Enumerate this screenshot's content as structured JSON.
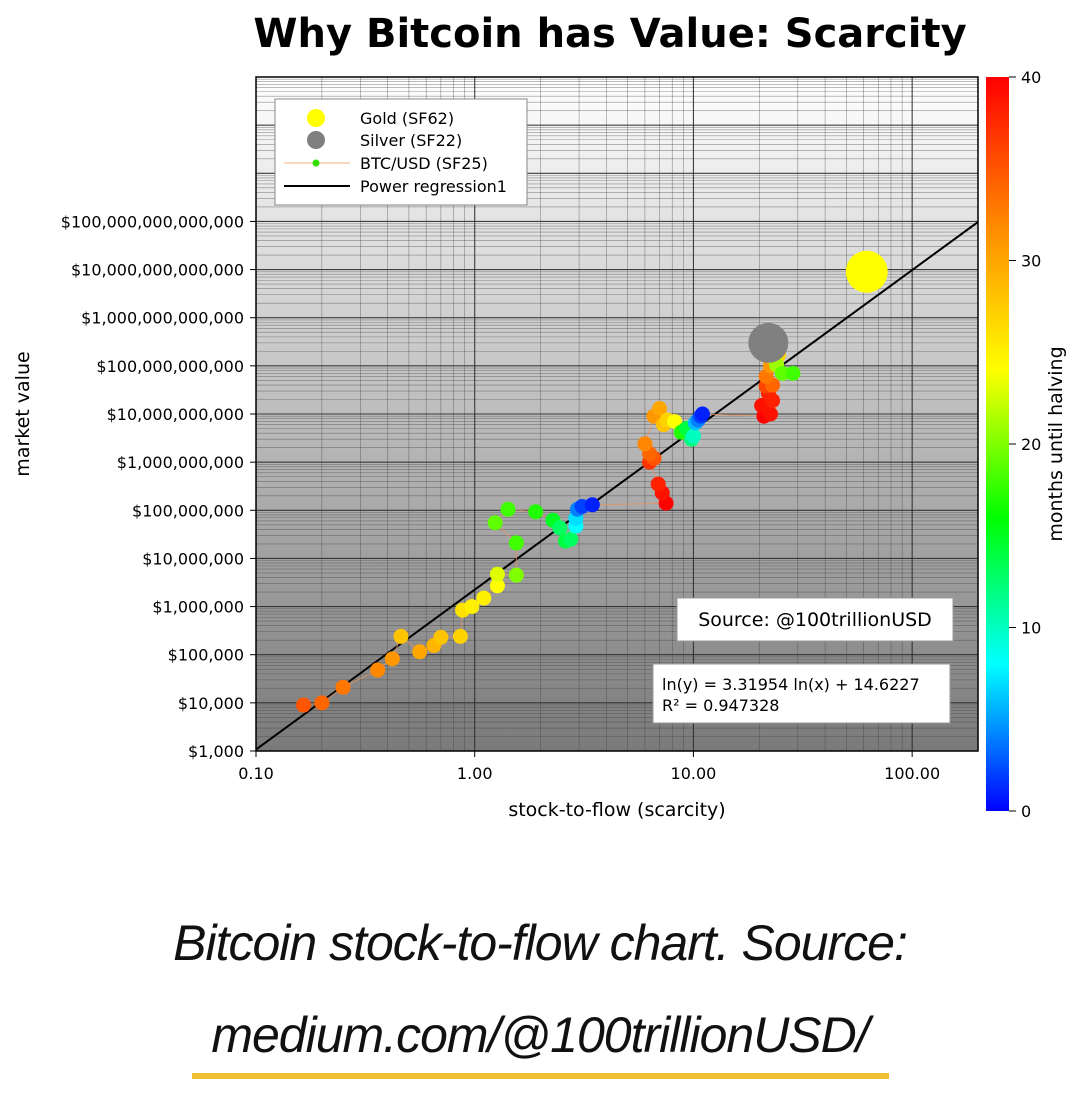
{
  "chart_data": {
    "type": "scatter",
    "title": "Why Bitcoin has Value: Scarcity",
    "xlabel": "stock-to-flow (scarcity)",
    "ylabel": "market value",
    "xscale": "log",
    "yscale": "log",
    "xlim": [
      0.1,
      200
    ],
    "ylim": [
      1000,
      100000000000000000
    ],
    "x_ticks": [
      {
        "value": 0.1,
        "label": "0.10"
      },
      {
        "value": 1,
        "label": "1.00"
      },
      {
        "value": 10,
        "label": "10.00"
      },
      {
        "value": 100,
        "label": "100.00"
      }
    ],
    "y_ticks": [
      {
        "value": 1000.0,
        "label": "$1,000"
      },
      {
        "value": 10000.0,
        "label": "$10,000"
      },
      {
        "value": 100000.0,
        "label": "$100,000"
      },
      {
        "value": 1000000.0,
        "label": "$1,000,000"
      },
      {
        "value": 10000000.0,
        "label": "$10,000,000"
      },
      {
        "value": 100000000.0,
        "label": "$100,000,000"
      },
      {
        "value": 1000000000.0,
        "label": "$1,000,000,000"
      },
      {
        "value": 10000000000.0,
        "label": "$10,000,000,000"
      },
      {
        "value": 100000000000.0,
        "label": "$100,000,000,000"
      },
      {
        "value": 1000000000000.0,
        "label": "$1,000,000,000,000"
      },
      {
        "value": 10000000000000.0,
        "label": "$10,000,000,000,000"
      },
      {
        "value": 100000000000000.0,
        "label": "$100,000,000,000,000"
      }
    ],
    "legend": {
      "position": "top-left",
      "entries": [
        {
          "label": "Gold (SF62)",
          "marker": "circle",
          "color": "#ffff00"
        },
        {
          "label": "Silver (SF22)",
          "marker": "circle",
          "color": "#808080"
        },
        {
          "label": "BTC/USD (SF25)",
          "marker": "line-dot",
          "color": "#33dd00"
        },
        {
          "label": "Power regression1",
          "marker": "line",
          "color": "#000000"
        }
      ]
    },
    "gold": {
      "x": 62,
      "y": 9000000000000.0,
      "color": "#ffff00"
    },
    "silver": {
      "x": 22,
      "y": 300000000000.0,
      "color": "#808080"
    },
    "regression": {
      "slope": 3.31954,
      "intercept": 14.6227,
      "x_range": [
        0.1,
        200
      ],
      "color": "#000000"
    },
    "colorbar": {
      "label": "months until halving",
      "min": 0,
      "max": 40,
      "ticks": [
        0,
        10,
        20,
        30,
        40
      ],
      "colors": [
        "#0000ff",
        "#00ffff",
        "#00ff00",
        "#ffff00",
        "#ff8800",
        "#ff0000"
      ]
    },
    "btc_series": [
      {
        "x": 0.165,
        "y": 9000,
        "m": 35
      },
      {
        "x": 0.2,
        "y": 10000,
        "m": 34
      },
      {
        "x": 0.25,
        "y": 21000,
        "m": 33
      },
      {
        "x": 0.36,
        "y": 48000,
        "m": 32
      },
      {
        "x": 0.42,
        "y": 82000,
        "m": 31
      },
      {
        "x": 0.46,
        "y": 240000,
        "m": 28
      },
      {
        "x": 0.56,
        "y": 115000,
        "m": 30
      },
      {
        "x": 0.65,
        "y": 155000,
        "m": 29
      },
      {
        "x": 0.7,
        "y": 230000,
        "m": 28
      },
      {
        "x": 0.86,
        "y": 240000,
        "m": 27
      },
      {
        "x": 0.88,
        "y": 840000,
        "m": 26
      },
      {
        "x": 0.97,
        "y": 1000000,
        "m": 25
      },
      {
        "x": 1.1,
        "y": 1500000,
        "m": 25
      },
      {
        "x": 1.27,
        "y": 2700000,
        "m": 24
      },
      {
        "x": 1.27,
        "y": 4700000,
        "m": 23
      },
      {
        "x": 1.55,
        "y": 4500000,
        "m": 20
      },
      {
        "x": 1.55,
        "y": 21000000,
        "m": 18
      },
      {
        "x": 1.24,
        "y": 55000000,
        "m": 19
      },
      {
        "x": 1.42,
        "y": 105000000,
        "m": 18
      },
      {
        "x": 1.9,
        "y": 93000000,
        "m": 17
      },
      {
        "x": 2.28,
        "y": 62000000,
        "m": 15
      },
      {
        "x": 2.45,
        "y": 43000000,
        "m": 13
      },
      {
        "x": 2.6,
        "y": 23000000,
        "m": 14
      },
      {
        "x": 2.75,
        "y": 25000000,
        "m": 13
      },
      {
        "x": 2.9,
        "y": 47000000,
        "m": 8
      },
      {
        "x": 2.9,
        "y": 68000000,
        "m": 7
      },
      {
        "x": 2.95,
        "y": 105000000,
        "m": 4
      },
      {
        "x": 3.1,
        "y": 120000000,
        "m": 2
      },
      {
        "x": 3.45,
        "y": 130000000,
        "m": 1
      },
      {
        "x": 7.5,
        "y": 140000000,
        "m": 40
      },
      {
        "x": 7.2,
        "y": 230000000,
        "m": 39
      },
      {
        "x": 6.9,
        "y": 350000000,
        "m": 38
      },
      {
        "x": 6.3,
        "y": 1000000000,
        "m": 37
      },
      {
        "x": 6.6,
        "y": 1200000000,
        "m": 35
      },
      {
        "x": 6.3,
        "y": 1500000000,
        "m": 34
      },
      {
        "x": 6.0,
        "y": 2400000000,
        "m": 32
      },
      {
        "x": 6.6,
        "y": 9000000000,
        "m": 31
      },
      {
        "x": 7.0,
        "y": 13000000000,
        "m": 30
      },
      {
        "x": 7.3,
        "y": 6000000000,
        "m": 28
      },
      {
        "x": 7.6,
        "y": 7500000000,
        "m": 27
      },
      {
        "x": 8.2,
        "y": 7000000000,
        "m": 24
      },
      {
        "x": 8.8,
        "y": 4200000000,
        "m": 17
      },
      {
        "x": 9.3,
        "y": 5000000000,
        "m": 14
      },
      {
        "x": 9.8,
        "y": 3000000000,
        "m": 12
      },
      {
        "x": 10.0,
        "y": 3500000000,
        "m": 10
      },
      {
        "x": 10.2,
        "y": 6500000000,
        "m": 6
      },
      {
        "x": 10.5,
        "y": 7500000000,
        "m": 4
      },
      {
        "x": 10.8,
        "y": 9000000000,
        "m": 2
      },
      {
        "x": 11.0,
        "y": 10000000000,
        "m": 1
      },
      {
        "x": 21.0,
        "y": 9000000000,
        "m": 40
      },
      {
        "x": 22.5,
        "y": 10000000000,
        "m": 39
      },
      {
        "x": 20.5,
        "y": 15000000000,
        "m": 39
      },
      {
        "x": 23.0,
        "y": 19000000000,
        "m": 38
      },
      {
        "x": 22.0,
        "y": 27000000000,
        "m": 38
      },
      {
        "x": 21.5,
        "y": 38000000000,
        "m": 36
      },
      {
        "x": 23.0,
        "y": 40000000000,
        "m": 34
      },
      {
        "x": 21.5,
        "y": 60000000000,
        "m": 33
      },
      {
        "x": 22.5,
        "y": 100000000000,
        "m": 31
      },
      {
        "x": 21.0,
        "y": 170000000000,
        "m": 29
      },
      {
        "x": 21.0,
        "y": 230000000000,
        "m": 28
      },
      {
        "x": 24.5,
        "y": 170000000000,
        "m": 27
      },
      {
        "x": 23.5,
        "y": 140000000000,
        "m": 24
      },
      {
        "x": 24.0,
        "y": 105000000000,
        "m": 21
      },
      {
        "x": 25.5,
        "y": 70000000000,
        "m": 19
      },
      {
        "x": 28.5,
        "y": 70000000000,
        "m": 18
      }
    ],
    "annotations": {
      "source": "Source: @100trillionUSD",
      "equation": "ln(y) = 3.31954 ln(x) + 14.6227",
      "r2": "R² = 0.947328"
    }
  },
  "caption": {
    "line1": "Bitcoin stock-to-flow chart. Source:",
    "line2": "medium.com/@100trillionUSD/"
  }
}
